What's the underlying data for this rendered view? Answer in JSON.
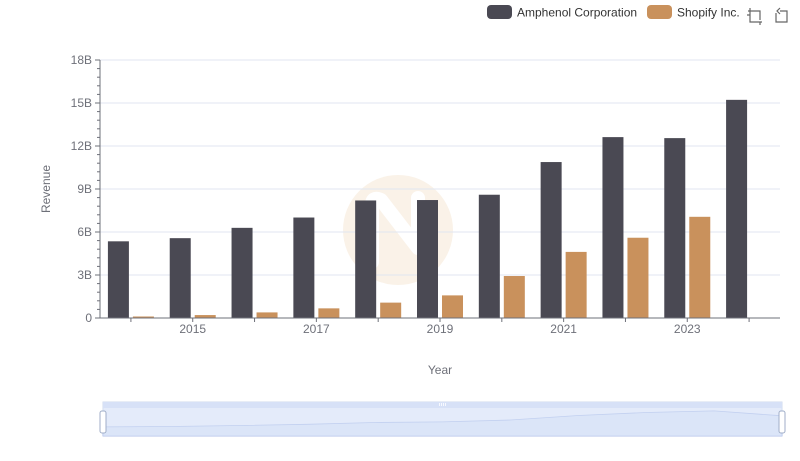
{
  "chart_data": {
    "type": "bar",
    "title": "",
    "xlabel": "Year",
    "ylabel": "Revenue",
    "x": [
      2014,
      2015,
      2016,
      2017,
      2018,
      2019,
      2020,
      2021,
      2022,
      2023,
      2024
    ],
    "x_tick_labels": [
      "2015",
      "2017",
      "2019",
      "2021",
      "2023"
    ],
    "y_tick_labels": [
      "0",
      "3B",
      "6B",
      "9B",
      "12B",
      "15B",
      "18B"
    ],
    "ylim": [
      0,
      18000000000
    ],
    "grid": true,
    "legend_position": "top-right",
    "series": [
      {
        "name": "Amphenol Corporation",
        "color": "#4a4953",
        "values": [
          5350000000,
          5570000000,
          6290000000,
          7010000000,
          8200000000,
          8230000000,
          8600000000,
          10880000000,
          12620000000,
          12550000000,
          15220000000
        ]
      },
      {
        "name": "Shopify Inc.",
        "color": "#c9915c",
        "values": [
          105000000,
          205000000,
          390000000,
          673000000,
          1073000000,
          1578000000,
          2929000000,
          4612000000,
          5600000000,
          7060000000,
          null
        ]
      }
    ]
  },
  "toolbar": {
    "icons": [
      "zoom-icon",
      "restore-icon"
    ]
  },
  "datazoom": {
    "range_percent": [
      0,
      100
    ],
    "fill_color": "#d7e1f7",
    "handle_color": "#ffffff"
  },
  "watermark": {
    "color": "#f6e8d6"
  }
}
